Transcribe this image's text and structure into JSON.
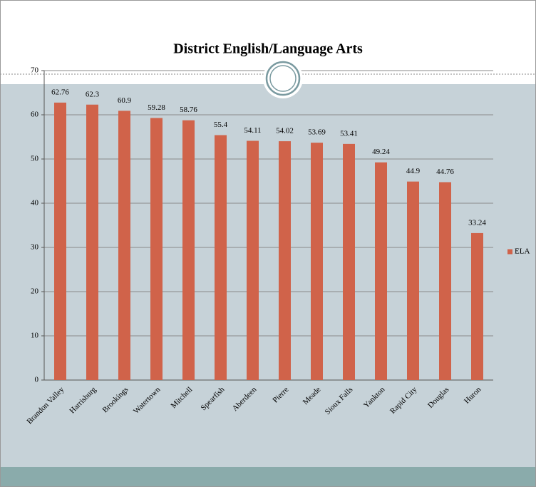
{
  "chart_data": {
    "type": "bar",
    "title": "District English/Language Arts",
    "categories": [
      "Brandon Valley",
      "Harrisburg",
      "Brookings",
      "Watertown",
      "Mitchell",
      "Spearfish",
      "Aberdeen",
      "Pierre",
      "Meade",
      "Sioux Falls",
      "Yankton",
      "Rapid City",
      "Douglas",
      "Huron"
    ],
    "series": [
      {
        "name": "ELA",
        "color": "#d0634a",
        "values": [
          62.76,
          62.3,
          60.9,
          59.28,
          58.76,
          55.4,
          54.11,
          54.02,
          53.69,
          53.41,
          49.24,
          44.9,
          44.76,
          33.24
        ]
      }
    ],
    "ylim": [
      0,
      70
    ],
    "yticks": [
      0,
      10,
      20,
      30,
      40,
      50,
      60,
      70
    ],
    "grid": true,
    "legend": "right"
  }
}
